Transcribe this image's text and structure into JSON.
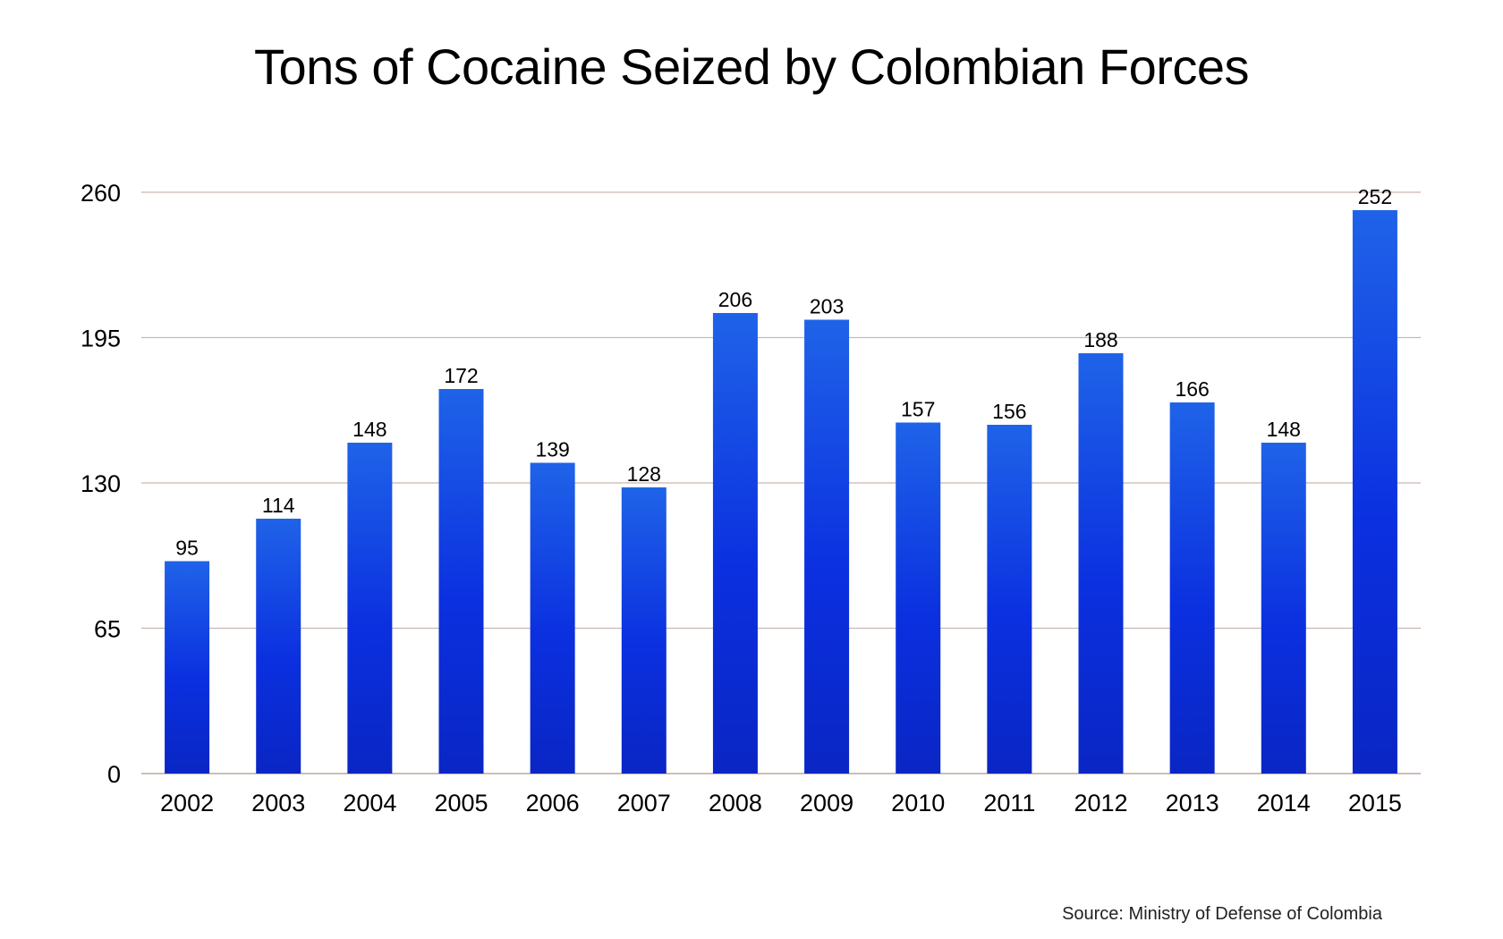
{
  "chart_data": {
    "type": "bar",
    "title": "Tons of Cocaine Seized by Colombian Forces",
    "categories": [
      "2002",
      "2003",
      "2004",
      "2005",
      "2006",
      "2007",
      "2008",
      "2009",
      "2010",
      "2011",
      "2012",
      "2013",
      "2014",
      "2015"
    ],
    "values": [
      95,
      114,
      148,
      172,
      139,
      128,
      206,
      203,
      157,
      156,
      188,
      166,
      148,
      252
    ],
    "data_labels": [
      "95",
      "114",
      "148",
      "172",
      "139",
      "128",
      "206",
      "203",
      "157",
      "156",
      "188",
      "166",
      "148",
      "252"
    ],
    "y_ticks": [
      0,
      65,
      130,
      195,
      260
    ],
    "y_tick_labels": [
      "0",
      "65",
      "130",
      "195",
      "260"
    ],
    "ylim": [
      0,
      260
    ],
    "xlabel": "",
    "ylabel": "",
    "grid": true,
    "legend": "none",
    "bar_color_top": "#1f63e8",
    "bar_color_bottom": "#0a26c4",
    "source": "Source: Ministry of Defense of Colombia"
  }
}
